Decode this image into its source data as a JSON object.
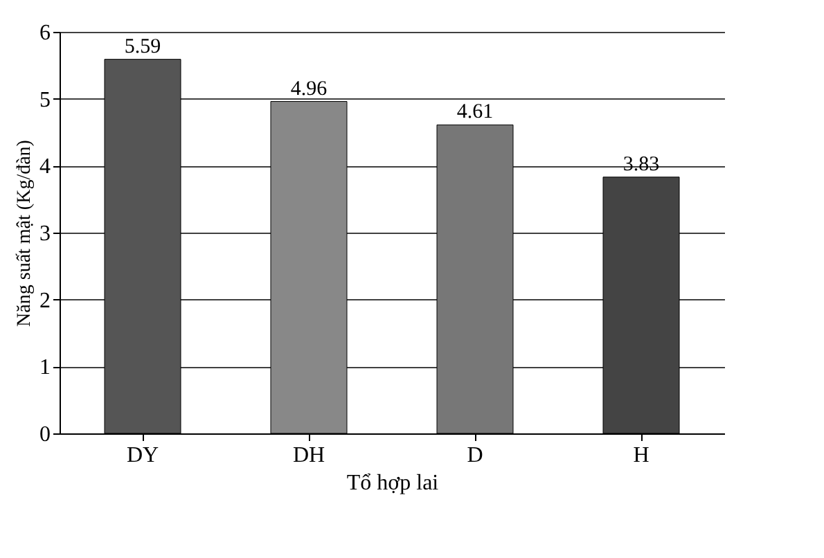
{
  "chart_data": {
    "type": "bar",
    "xlabel": "Tổ hợp lai",
    "ylabel": "Năng suất mật (Kg/đàn)",
    "categories": [
      "DY",
      "DH",
      "D",
      "H"
    ],
    "values": [
      5.59,
      4.96,
      4.61,
      3.83
    ],
    "colors": [
      "#555555",
      "#888888",
      "#777777",
      "#444444"
    ],
    "ylim": [
      0,
      6
    ],
    "yticks": [
      0,
      1,
      2,
      3,
      4,
      5,
      6
    ],
    "grid": "y",
    "data_labels": true
  }
}
